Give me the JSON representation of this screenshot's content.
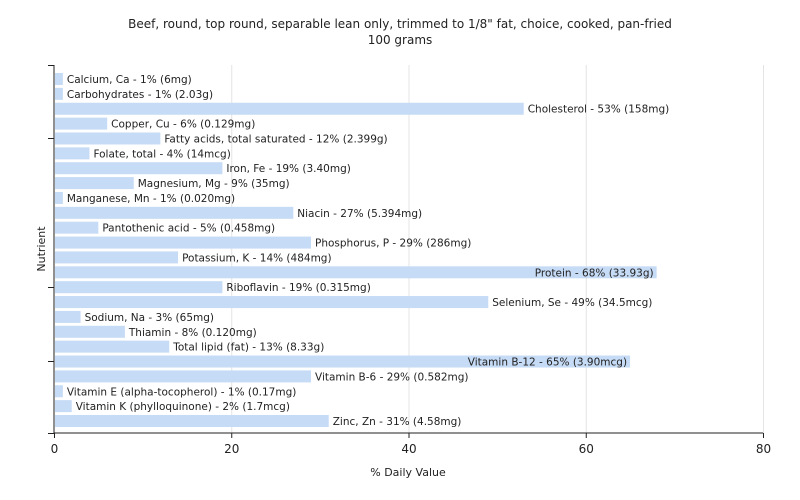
{
  "title": "Beef, round, top round, separable lean only, trimmed to 1/8\" fat, choice, cooked, pan-fried",
  "subtitle": "100 grams",
  "chart_data": {
    "type": "bar",
    "orientation": "horizontal",
    "xlabel": "% Daily Value",
    "ylabel": "Nutrient",
    "xlim": [
      0,
      80
    ],
    "xticks": [
      0,
      20,
      40,
      60,
      80
    ],
    "grid": true,
    "bar_color": "#c6dbf5",
    "categories": [
      "Calcium, Ca",
      "Carbohydrates",
      "Cholesterol",
      "Copper, Cu",
      "Fatty acids, total saturated",
      "Folate, total",
      "Iron, Fe",
      "Magnesium, Mg",
      "Manganese, Mn",
      "Niacin",
      "Pantothenic acid",
      "Phosphorus, P",
      "Potassium, K",
      "Protein",
      "Riboflavin",
      "Selenium, Se",
      "Sodium, Na",
      "Thiamin",
      "Total lipid (fat)",
      "Vitamin B-12",
      "Vitamin B-6",
      "Vitamin E (alpha-tocopherol)",
      "Vitamin K (phylloquinone)",
      "Zinc, Zn"
    ],
    "values": [
      1,
      1,
      53,
      6,
      12,
      4,
      19,
      9,
      1,
      27,
      5,
      29,
      14,
      68,
      19,
      49,
      3,
      8,
      13,
      65,
      29,
      1,
      2,
      31
    ],
    "labels": [
      "Calcium, Ca - 1% (6mg)",
      "Carbohydrates - 1% (2.03g)",
      "Cholesterol - 53% (158mg)",
      "Copper, Cu - 6% (0.129mg)",
      "Fatty acids, total saturated - 12% (2.399g)",
      "Folate, total - 4% (14mcg)",
      "Iron, Fe - 19% (3.40mg)",
      "Magnesium, Mg - 9% (35mg)",
      "Manganese, Mn - 1% (0.020mg)",
      "Niacin - 27% (5.394mg)",
      "Pantothenic acid - 5% (0.458mg)",
      "Phosphorus, P - 29% (286mg)",
      "Potassium, K - 14% (484mg)",
      "Protein - 68% (33.93g)",
      "Riboflavin - 19% (0.315mg)",
      "Selenium, Se - 49% (34.5mcg)",
      "Sodium, Na - 3% (65mg)",
      "Thiamin - 8% (0.120mg)",
      "Total lipid (fat) - 13% (8.33g)",
      "Vitamin B-12 - 65% (3.90mcg)",
      "Vitamin B-6 - 29% (0.582mg)",
      "Vitamin E (alpha-tocopherol) - 1% (0.17mg)",
      "Vitamin K (phylloquinone) - 2% (1.7mcg)",
      "Zinc, Zn - 31% (4.58mg)"
    ]
  }
}
